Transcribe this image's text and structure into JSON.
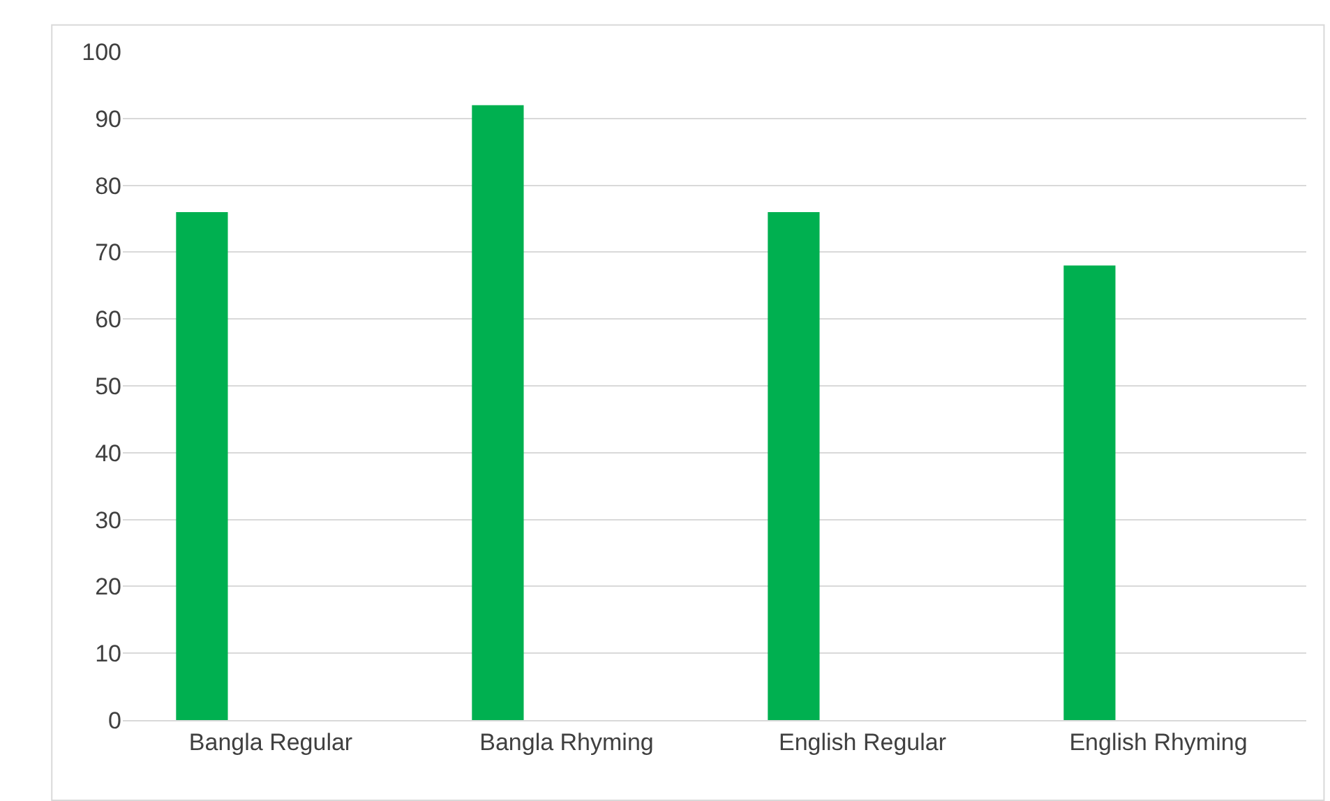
{
  "chart_data": {
    "type": "bar",
    "categories": [
      "Bangla Regular",
      "Bangla Rhyming",
      "English Regular",
      "English Rhyming"
    ],
    "values": [
      76,
      92,
      76,
      68
    ],
    "color": "#00b050",
    "ylim": [
      0,
      100
    ],
    "yticks": [
      0,
      10,
      20,
      30,
      40,
      50,
      60,
      70,
      80,
      90,
      100
    ],
    "grid": "y"
  }
}
